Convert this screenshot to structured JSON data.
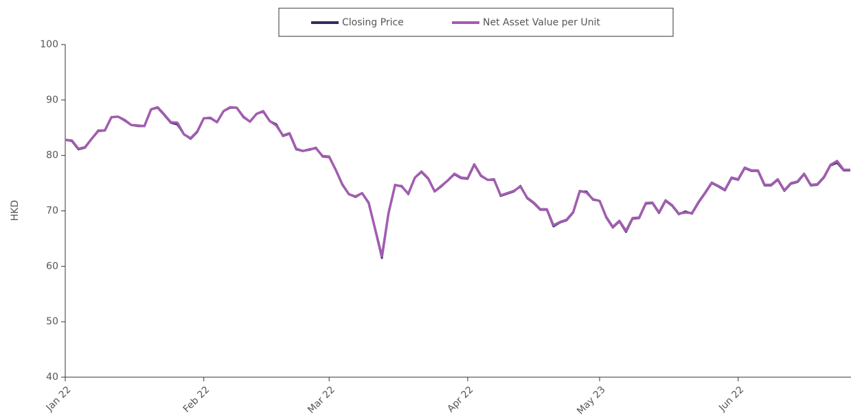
{
  "chart_data": {
    "type": "line",
    "y_label": "HKD",
    "categories": [
      "Jan 22",
      null,
      null,
      null,
      null,
      null,
      null,
      null,
      null,
      null,
      null,
      null,
      null,
      null,
      null,
      null,
      null,
      null,
      null,
      null,
      null,
      "Feb 22",
      null,
      null,
      null,
      null,
      null,
      null,
      null,
      null,
      null,
      null,
      null,
      null,
      null,
      null,
      null,
      null,
      null,
      null,
      "Mar 22",
      null,
      null,
      null,
      null,
      null,
      null,
      null,
      null,
      null,
      null,
      null,
      null,
      null,
      null,
      null,
      null,
      null,
      null,
      null,
      null,
      "Apr 22",
      null,
      null,
      null,
      null,
      null,
      null,
      null,
      null,
      null,
      null,
      null,
      null,
      null,
      null,
      null,
      null,
      null,
      null,
      null,
      "May 23",
      null,
      null,
      null,
      null,
      null,
      null,
      null,
      null,
      null,
      null,
      null,
      null,
      null,
      null,
      null,
      null,
      null,
      null,
      null,
      null,
      "Jun 22",
      null,
      null,
      null,
      null,
      null,
      null,
      null,
      null,
      null,
      null,
      null,
      null,
      null,
      null,
      null,
      null,
      null
    ],
    "series": [
      {
        "name": "Closing Price",
        "color": "#2e2d5c",
        "values": [
          82.8,
          82.6,
          81.1,
          81.4,
          83,
          84.5,
          84.5,
          86.9,
          87,
          86.3,
          85.5,
          85.3,
          85.3,
          88.3,
          88.6,
          87.3,
          85.9,
          85.6,
          83.8,
          83.0,
          84.2,
          86.7,
          86.7,
          86.0,
          88.0,
          88.6,
          88.6,
          86.9,
          86.1,
          87.5,
          87.9,
          86.2,
          85.6,
          83.5,
          83.9,
          81.1,
          80.8,
          81.0,
          81.4,
          79.8,
          79.7,
          77.4,
          74.7,
          73.0,
          72.5,
          73.2,
          71.5,
          66.5,
          61.5,
          69.5,
          74.6,
          74.5,
          73.0,
          76.0,
          77.0,
          75.8,
          73.5,
          74.4,
          75.5,
          76.6,
          75.9,
          75.8,
          78.3,
          76.3,
          75.6,
          75.7,
          72.7,
          73.1,
          73.5,
          74.5,
          72.3,
          71.4,
          70.2,
          70.2,
          67.2,
          67.9,
          68.3,
          69.7,
          73.5,
          73.5,
          72.0,
          71.8,
          68.8,
          67.0,
          68.1,
          66.2,
          68.6,
          68.7,
          71.3,
          71.4,
          69.6,
          71.8,
          70.9,
          69.4,
          69.9,
          69.5,
          71.5,
          73.2,
          75.0,
          74.4,
          73.7,
          75.9,
          75.6,
          77.7,
          77.2,
          77.2,
          74.6,
          74.6,
          75.6,
          73.6,
          74.9,
          75.2,
          76.6,
          74.6,
          74.7,
          76.0,
          78.2,
          78.7,
          77.3,
          77.3
        ]
      },
      {
        "name": "Net Asset Value per Unit",
        "color": "#a25db0",
        "values": [
          82.8,
          82.7,
          81.2,
          81.5,
          83,
          84.4,
          84.5,
          86.9,
          87,
          86.4,
          85.5,
          85.4,
          85.3,
          88.3,
          88.7,
          87.4,
          86.0,
          85.9,
          83.8,
          83.1,
          84.3,
          86.7,
          86.8,
          86.0,
          88.0,
          88.7,
          88.6,
          87.0,
          86.1,
          87.5,
          88.0,
          86.2,
          85.4,
          83.6,
          84.0,
          81.2,
          80.8,
          81.1,
          81.3,
          79.9,
          79.8,
          77.4,
          74.8,
          73.0,
          72.6,
          73.2,
          71.4,
          66.6,
          61.8,
          69.6,
          74.7,
          74.4,
          73.1,
          76.0,
          77.1,
          75.9,
          73.5,
          74.5,
          75.5,
          76.7,
          76.0,
          75.9,
          78.4,
          76.4,
          75.6,
          75.6,
          72.8,
          73.2,
          73.6,
          74.4,
          72.4,
          71.5,
          70.3,
          70.3,
          67.4,
          68.0,
          68.4,
          69.8,
          73.6,
          73.3,
          72.1,
          71.8,
          68.9,
          67.1,
          68.2,
          66.4,
          68.7,
          68.8,
          71.4,
          71.5,
          69.7,
          71.9,
          71.0,
          69.5,
          69.7,
          69.6,
          71.6,
          73.3,
          75.1,
          74.5,
          73.8,
          76.0,
          75.7,
          77.8,
          77.3,
          77.3,
          74.7,
          74.7,
          75.7,
          73.7,
          75.0,
          75.3,
          76.7,
          74.7,
          74.8,
          76.1,
          78.3,
          79.0,
          77.4,
          77.4
        ]
      }
    ],
    "ylim": [
      40,
      100
    ],
    "yticks": [
      40,
      50,
      60,
      70,
      80,
      90,
      100
    ],
    "grid": false
  }
}
